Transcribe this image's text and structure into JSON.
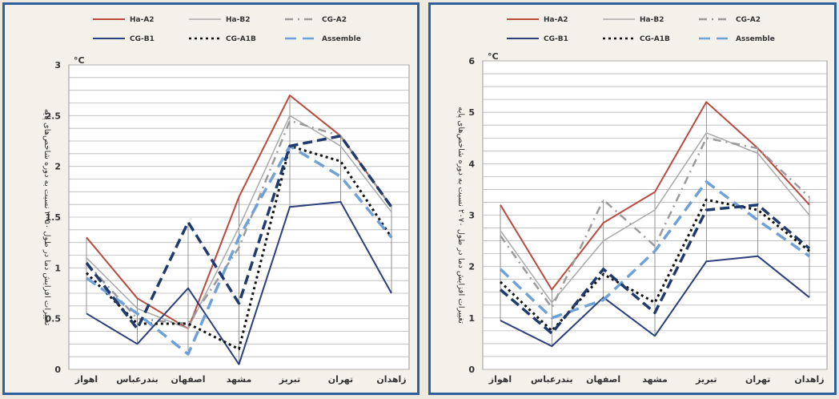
{
  "styles": {
    "Ha-A2": {
      "color": "#b94a3e",
      "width": 2,
      "dash": ""
    },
    "Ha-B2": {
      "color": "#a9a9a9",
      "width": 1.5,
      "dash": ""
    },
    "CG-A2": {
      "color": "#9a9a9a",
      "width": 2.5,
      "dash": "10,6,2,6"
    },
    "CG-B1": {
      "color": "#2b3f7a",
      "width": 2,
      "dash": ""
    },
    "CG-A1B": {
      "color": "#111111",
      "width": 3,
      "dash": "3,4"
    },
    "Assemble": {
      "color": "#6fa1d6",
      "width": 3.5,
      "dash": "14,8"
    },
    "Assemble-dark": {
      "color": "#203a6e",
      "width": 3.5,
      "dash": "12,6"
    }
  },
  "chart_data": [
    {
      "type": "line",
      "ylabel": "تغییرات افزایش دما در طول ۲۰۵۰ نسبت به دوره شاخص‌های پایه",
      "yunit": "°C",
      "ylim": [
        0,
        3
      ],
      "yticks": [
        "0",
        "0.5",
        "1",
        "1.5",
        "2",
        "2.5",
        "3"
      ],
      "categories": [
        "اهواز",
        "بندرعباس",
        "اصفهان",
        "مشهد",
        "تبریز",
        "تهران",
        "زاهدان"
      ],
      "legend": [
        "Ha-A2",
        "Ha-B2",
        "CG-A2",
        "CG-B1",
        "CG-A1B",
        "Assemble"
      ],
      "series": [
        {
          "name": "Ha-A2",
          "values": [
            1.3,
            0.7,
            0.4,
            1.7,
            2.7,
            2.3,
            1.6
          ]
        },
        {
          "name": "Ha-B2",
          "values": [
            1.1,
            0.6,
            0.4,
            1.4,
            2.5,
            2.2,
            1.55
          ]
        },
        {
          "name": "CG-A2",
          "values": [
            1.05,
            0.5,
            0.45,
            1.2,
            2.45,
            2.3,
            1.6
          ]
        },
        {
          "name": "CG-B1",
          "values": [
            0.55,
            0.25,
            0.8,
            0.05,
            1.6,
            1.65,
            0.75
          ]
        },
        {
          "name": "CG-A1B",
          "values": [
            0.95,
            0.45,
            0.45,
            0.2,
            2.2,
            2.05,
            1.3
          ]
        },
        {
          "name": "Assemble",
          "values": [
            0.9,
            0.55,
            0.15,
            1.3,
            2.2,
            1.9,
            1.3
          ],
          "style": "Assemble"
        },
        {
          "name": "",
          "values": [
            1.05,
            0.4,
            1.45,
            0.65,
            2.2,
            2.3,
            1.6
          ],
          "style": "Assemble-dark"
        }
      ]
    },
    {
      "type": "line",
      "ylabel": "تغییرات افزایش دما در طول ۲۰۷۰ نسبت به دوره شاخص‌های پایه",
      "yunit": "°C",
      "ylim": [
        0,
        6
      ],
      "yticks": [
        "0",
        "1",
        "2",
        "3",
        "4",
        "5",
        "6"
      ],
      "categories": [
        "اهواز",
        "بندرعباس",
        "اصفهان",
        "مشهد",
        "تبریز",
        "تهران",
        "زاهدان"
      ],
      "legend": [
        "Ha-A2",
        "Ha-B2",
        "CG-A2",
        "CG-B1",
        "CG-A1B",
        "Assemble"
      ],
      "series": [
        {
          "name": "Ha-A2",
          "values": [
            3.2,
            1.55,
            2.85,
            3.45,
            5.2,
            4.3,
            3.2
          ]
        },
        {
          "name": "Ha-B2",
          "values": [
            2.7,
            1.3,
            2.5,
            3.1,
            4.6,
            4.2,
            3.0
          ]
        },
        {
          "name": "CG-A2",
          "values": [
            2.6,
            1.2,
            3.3,
            2.4,
            4.5,
            4.3,
            3.35
          ]
        },
        {
          "name": "CG-B1",
          "values": [
            0.95,
            0.45,
            1.4,
            0.65,
            2.1,
            2.2,
            1.4
          ]
        },
        {
          "name": "CG-A1B",
          "values": [
            1.7,
            0.75,
            1.85,
            1.3,
            3.3,
            3.1,
            2.3
          ]
        },
        {
          "name": "Assemble",
          "values": [
            1.95,
            1.0,
            1.35,
            2.3,
            3.65,
            2.9,
            2.2
          ],
          "style": "Assemble"
        },
        {
          "name": "",
          "values": [
            1.55,
            0.7,
            1.95,
            1.1,
            3.1,
            3.2,
            2.35
          ],
          "style": "Assemble-dark"
        }
      ]
    }
  ]
}
